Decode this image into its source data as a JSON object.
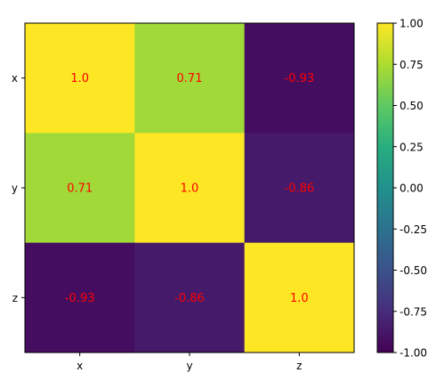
{
  "chart_data": {
    "type": "heatmap",
    "title": "",
    "xlabel": "",
    "ylabel": "",
    "x_categories": [
      "x",
      "y",
      "z"
    ],
    "y_categories": [
      "x",
      "y",
      "z"
    ],
    "values": [
      [
        1.0,
        0.71,
        -0.93
      ],
      [
        0.71,
        1.0,
        -0.86
      ],
      [
        -0.93,
        -0.86,
        1.0
      ]
    ],
    "cell_labels": [
      [
        "1.0",
        "0.71",
        "-0.93"
      ],
      [
        "0.71",
        "1.0",
        "-0.86"
      ],
      [
        "-0.93",
        "-0.86",
        "1.0"
      ]
    ],
    "colormap": "viridis",
    "vmin": -1.0,
    "vmax": 1.0,
    "annotation_color": "#ff0000",
    "colorbar": {
      "position": "right",
      "ticks": [
        "-1.00",
        "-0.75",
        "-0.50",
        "-0.25",
        "0.00",
        "0.25",
        "0.50",
        "0.75",
        "1.00"
      ],
      "tick_values": [
        -1.0,
        -0.75,
        -0.5,
        -0.25,
        0.0,
        0.25,
        0.5,
        0.75,
        1.0
      ]
    },
    "grid": false
  }
}
